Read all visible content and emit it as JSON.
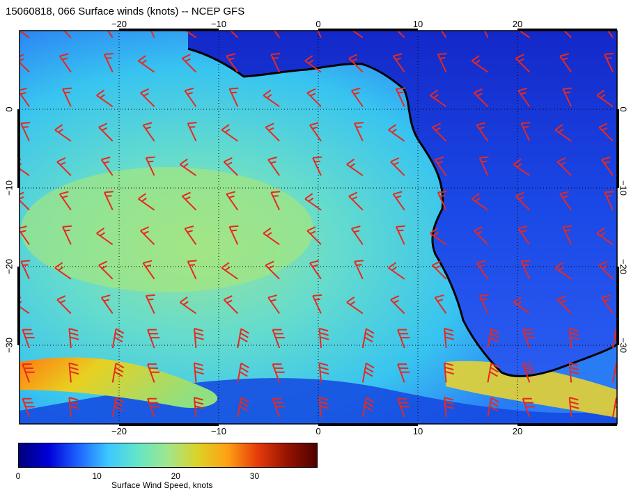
{
  "title": "15060818, 066 Surface winds (knots) -- NCEP GFS",
  "map": {
    "lon_range": [
      -30,
      30
    ],
    "lat_range": [
      -40,
      10
    ],
    "lon_ticks": [
      -20,
      -10,
      0,
      10,
      20
    ],
    "lat_ticks": [
      0,
      -10,
      -20,
      -30
    ],
    "lon_tick_labels": [
      "−20",
      "−10",
      "0",
      "10",
      "20"
    ],
    "lat_tick_labels": [
      "0",
      "−10",
      "−20",
      "−30"
    ],
    "gridlines": true,
    "coastline_color": "#000000",
    "barb_color": "#e8281e"
  },
  "colorbar": {
    "label": "Surface Wind Speed, knots",
    "range": [
      0,
      38
    ],
    "ticks": [
      "0",
      "10",
      "20",
      "30"
    ],
    "tick_values": [
      0,
      10,
      20,
      30
    ],
    "colors": [
      "#00007a",
      "#0000d8",
      "#1e64ff",
      "#3cc8ff",
      "#64e6c8",
      "#a0e68c",
      "#dcd228",
      "#ffa014",
      "#e63c0a",
      "#961400",
      "#500000"
    ]
  }
}
